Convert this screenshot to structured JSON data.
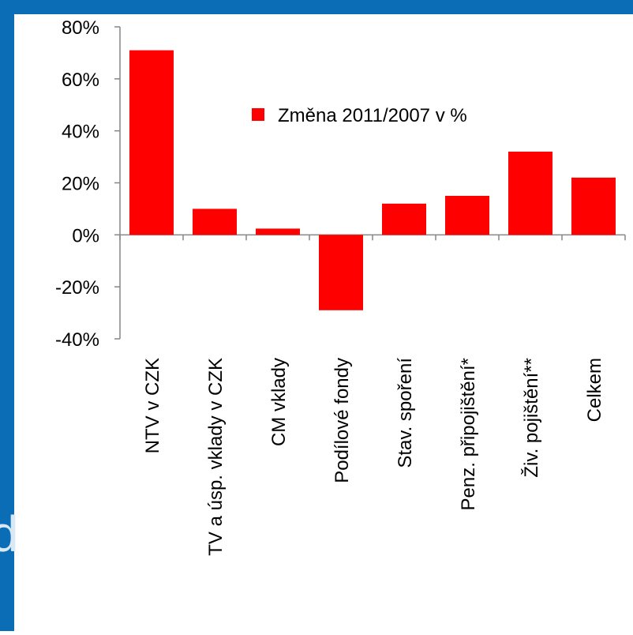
{
  "chart_data": {
    "type": "bar",
    "background_text": "d",
    "categories": [
      "NTV v CZK",
      "TV a úsp. vklady v CZK",
      "CM vklady",
      "Podílové fondy",
      "Stav. spoření",
      "Penz. připojištění*",
      "Živ. pojištění**",
      "Celkem"
    ],
    "series": [
      {
        "name": "Změna 2011/2007 v %",
        "color": "#ff0000",
        "values": [
          71,
          10,
          2.4,
          -29,
          12,
          15,
          32,
          22
        ]
      }
    ],
    "ylim": [
      -40,
      80
    ],
    "yticks": [
      {
        "value": -40,
        "label": "-40%"
      },
      {
        "value": -20,
        "label": "-20%"
      },
      {
        "value": 0,
        "label": "0%"
      },
      {
        "value": 20,
        "label": "20%"
      },
      {
        "value": 40,
        "label": "40%"
      },
      {
        "value": 60,
        "label": "60%"
      },
      {
        "value": 80,
        "label": "80%"
      }
    ],
    "legend": "top-right"
  }
}
